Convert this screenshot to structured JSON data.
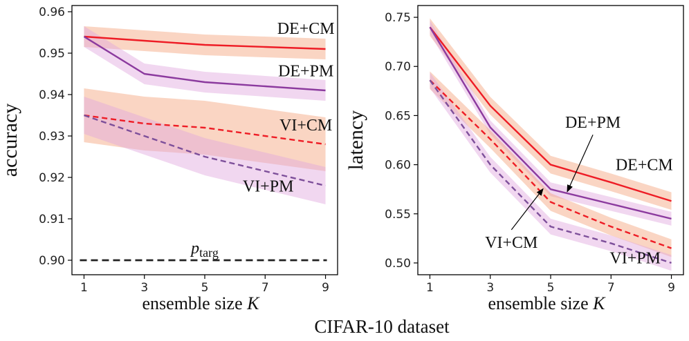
{
  "caption": "CIFAR-10 dataset",
  "colors": {
    "red": "#ee1c25",
    "purple": "#8b3a9e",
    "purple_dash": "#7d4f9a",
    "band_red": "#f5a27a",
    "band_purple": "#dfa6dd",
    "target": "#222222"
  },
  "chart_data": [
    {
      "type": "line",
      "title": "",
      "xlabel": "ensemble size",
      "xlabel_var": "K",
      "ylabel": "accuracy",
      "x": [
        1,
        3,
        5,
        7,
        9
      ],
      "xticks": [
        "1",
        "3",
        "5",
        "7",
        "9"
      ],
      "ylim": [
        0.8965,
        0.9615
      ],
      "yticks": [
        "0.90",
        "0.91",
        "0.92",
        "0.93",
        "0.94",
        "0.95",
        "0.96"
      ],
      "grid": false,
      "series": [
        {
          "name": "DE+CM",
          "x": [
            1,
            3,
            5,
            7,
            9
          ],
          "values": [
            0.954,
            0.953,
            0.952,
            0.9515,
            0.951
          ],
          "band": [
            0.0025,
            0.0025,
            0.0025,
            0.0025,
            0.0025
          ],
          "color": "red",
          "band_color": "band_red",
          "dashed": false
        },
        {
          "name": "DE+PM",
          "x": [
            1,
            3,
            5,
            7,
            9
          ],
          "values": [
            0.954,
            0.945,
            0.943,
            0.942,
            0.941
          ],
          "band": [
            0.0025,
            0.0025,
            0.0025,
            0.0025,
            0.0025
          ],
          "color": "purple",
          "band_color": "band_purple",
          "dashed": false
        },
        {
          "name": "VI+CM",
          "x": [
            1,
            3,
            5,
            7,
            9
          ],
          "values": [
            0.935,
            0.933,
            0.932,
            0.93,
            0.928
          ],
          "band": [
            0.0065,
            0.0065,
            0.0065,
            0.0065,
            0.0065
          ],
          "color": "red",
          "band_color": "band_red",
          "dashed": true
        },
        {
          "name": "VI+PM",
          "x": [
            1,
            3,
            5,
            7,
            9
          ],
          "values": [
            0.935,
            0.93,
            0.925,
            0.9215,
            0.918
          ],
          "band": [
            0.0045,
            0.0045,
            0.0045,
            0.0045,
            0.0045
          ],
          "color": "purple_dash",
          "band_color": "band_purple",
          "dashed": true
        }
      ],
      "reference": {
        "name": "p",
        "subscript": "targ",
        "value": 0.9
      },
      "annotations": [
        {
          "text": "DE+CM",
          "x": 8.35,
          "y": 0.9547
        },
        {
          "text": "DE+PM",
          "x": 8.35,
          "y": 0.9444
        },
        {
          "text": "VI+CM",
          "x": 8.35,
          "y": 0.9313
        },
        {
          "text": "VI+PM",
          "x": 7.1,
          "y": 0.9166
        }
      ]
    },
    {
      "type": "line",
      "title": "",
      "xlabel": "ensemble size",
      "xlabel_var": "K",
      "ylabel": "latency",
      "x": [
        1,
        3,
        5,
        7,
        9
      ],
      "xticks": [
        "1",
        "3",
        "5",
        "7",
        "9"
      ],
      "ylim": [
        0.488,
        0.762
      ],
      "yticks": [
        "0.50",
        "0.55",
        "0.60",
        "0.65",
        "0.70",
        "0.75"
      ],
      "grid": false,
      "series": [
        {
          "name": "DE+CM",
          "x": [
            1,
            3,
            5,
            7,
            9
          ],
          "values": [
            0.74,
            0.66,
            0.6,
            0.582,
            0.563
          ],
          "band": [
            0.009,
            0.009,
            0.009,
            0.009,
            0.009
          ],
          "color": "red",
          "band_color": "band_red",
          "dashed": false
        },
        {
          "name": "DE+PM",
          "x": [
            1,
            3,
            5,
            7,
            9
          ],
          "values": [
            0.74,
            0.638,
            0.575,
            0.56,
            0.545
          ],
          "band": [
            0.007,
            0.007,
            0.007,
            0.007,
            0.007
          ],
          "color": "purple",
          "band_color": "band_purple",
          "dashed": false
        },
        {
          "name": "VI+CM",
          "x": [
            1,
            3,
            5,
            7,
            9
          ],
          "values": [
            0.686,
            0.626,
            0.562,
            0.537,
            0.515
          ],
          "band": [
            0.009,
            0.009,
            0.009,
            0.009,
            0.009
          ],
          "color": "red",
          "band_color": "band_red",
          "dashed": true
        },
        {
          "name": "VI+PM",
          "x": [
            1,
            3,
            5,
            7,
            9
          ],
          "values": [
            0.686,
            0.6,
            0.537,
            0.52,
            0.5
          ],
          "band": [
            0.008,
            0.008,
            0.008,
            0.008,
            0.008
          ],
          "color": "purple_dash",
          "band_color": "band_purple",
          "dashed": true
        }
      ],
      "annotations": [
        {
          "text": "DE+PM",
          "x": 6.4,
          "y": 0.6375,
          "arrow_to": [
            5.55,
            0.5725
          ]
        },
        {
          "text": "DE+CM",
          "x": 8.1,
          "y": 0.5945
        },
        {
          "text": "VI+CM",
          "x": 3.7,
          "y": 0.5155,
          "arrow_to": [
            4.75,
            0.5755
          ]
        },
        {
          "text": "VI+PM",
          "x": 7.8,
          "y": 0.4996
        }
      ]
    }
  ]
}
